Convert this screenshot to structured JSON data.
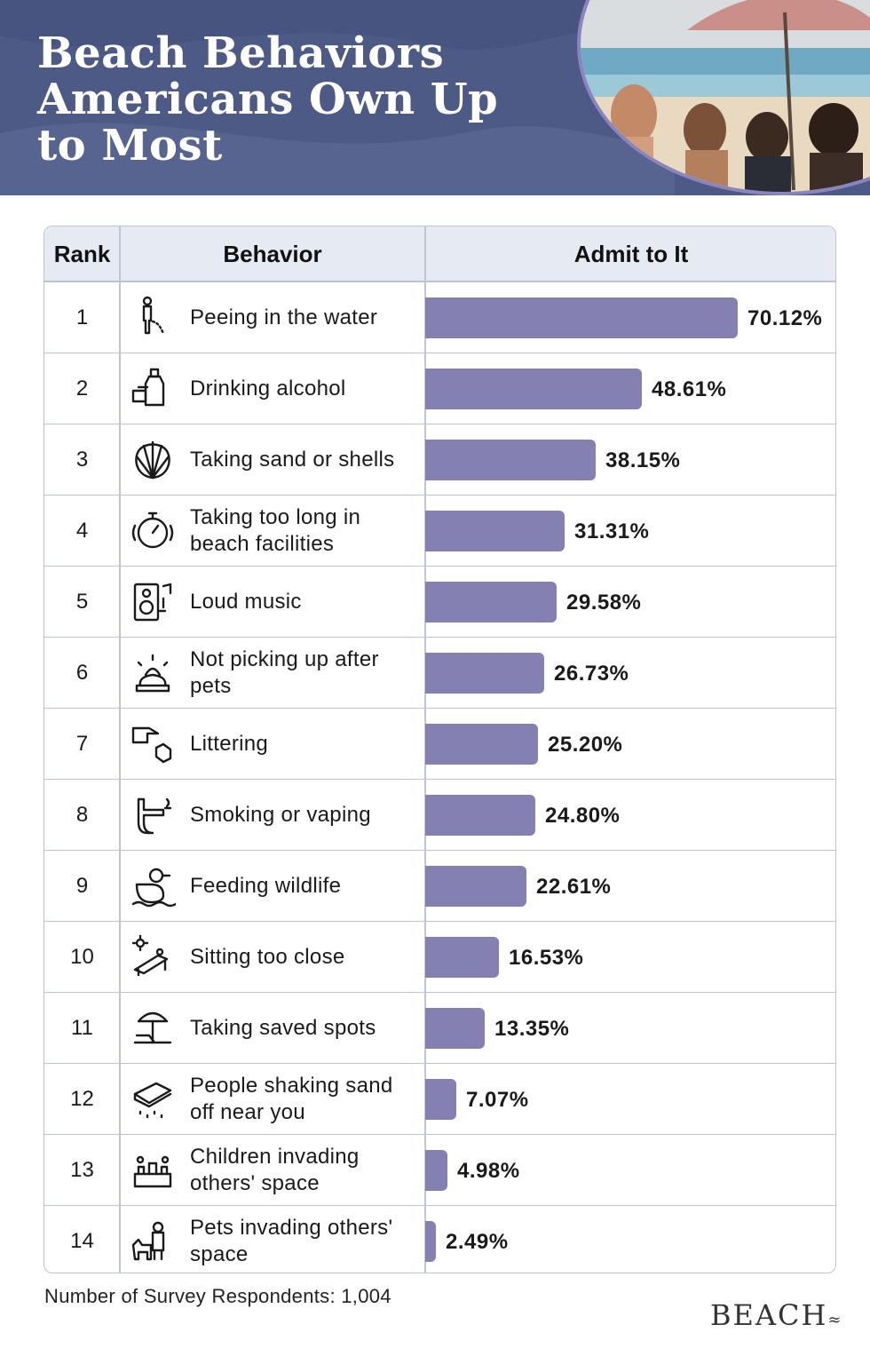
{
  "title": "Beach Behaviors Americans Own Up to Most",
  "colors": {
    "header_bg": "#4c5a85",
    "bar": "#8580b2",
    "table_head": "#e6eaf2"
  },
  "table": {
    "headers": {
      "rank": "Rank",
      "behavior": "Behavior",
      "admit": "Admit to It"
    }
  },
  "chart_data": {
    "type": "bar",
    "orientation": "horizontal",
    "value_unit": "%",
    "xlim": [
      0,
      70.12
    ],
    "categories": [
      "Peeing in the water",
      "Drinking alcohol",
      "Taking sand or shells",
      "Taking too long in beach facilities",
      "Loud music",
      "Not picking up after pets",
      "Littering",
      "Smoking or vaping",
      "Feeding wildlife",
      "Sitting too close",
      "Taking saved spots",
      "People shaking sand off near you",
      "Children invading others' space",
      "Pets invading others' space"
    ],
    "values": [
      70.12,
      48.61,
      38.15,
      31.31,
      29.58,
      26.73,
      25.2,
      24.8,
      22.61,
      16.53,
      13.35,
      7.07,
      4.98,
      2.49
    ],
    "value_labels": [
      "70.12%",
      "48.61%",
      "38.15%",
      "31.31%",
      "29.58%",
      "26.73%",
      "25.20%",
      "24.80%",
      "22.61%",
      "16.53%",
      "13.35%",
      "7.07%",
      "4.98%",
      "2.49%"
    ],
    "ranks": [
      "1",
      "2",
      "3",
      "4",
      "5",
      "6",
      "7",
      "8",
      "9",
      "10",
      "11",
      "12",
      "13",
      "14"
    ],
    "icons": [
      "peeing-person-icon",
      "alcohol-bottle-icon",
      "seashell-icon",
      "stopwatch-icon",
      "speaker-music-icon",
      "pet-waste-icon",
      "littering-hand-icon",
      "cigarette-hand-icon",
      "duck-water-icon",
      "beach-lounger-sun-icon",
      "beach-umbrella-chair-icon",
      "shaking-towel-icon",
      "children-sand-castle-icon",
      "dog-person-icon"
    ]
  },
  "footer": {
    "respondents": "Number of Survey Respondents: 1,004"
  },
  "logo": {
    "text": "BEACH",
    "mark": "≈"
  }
}
